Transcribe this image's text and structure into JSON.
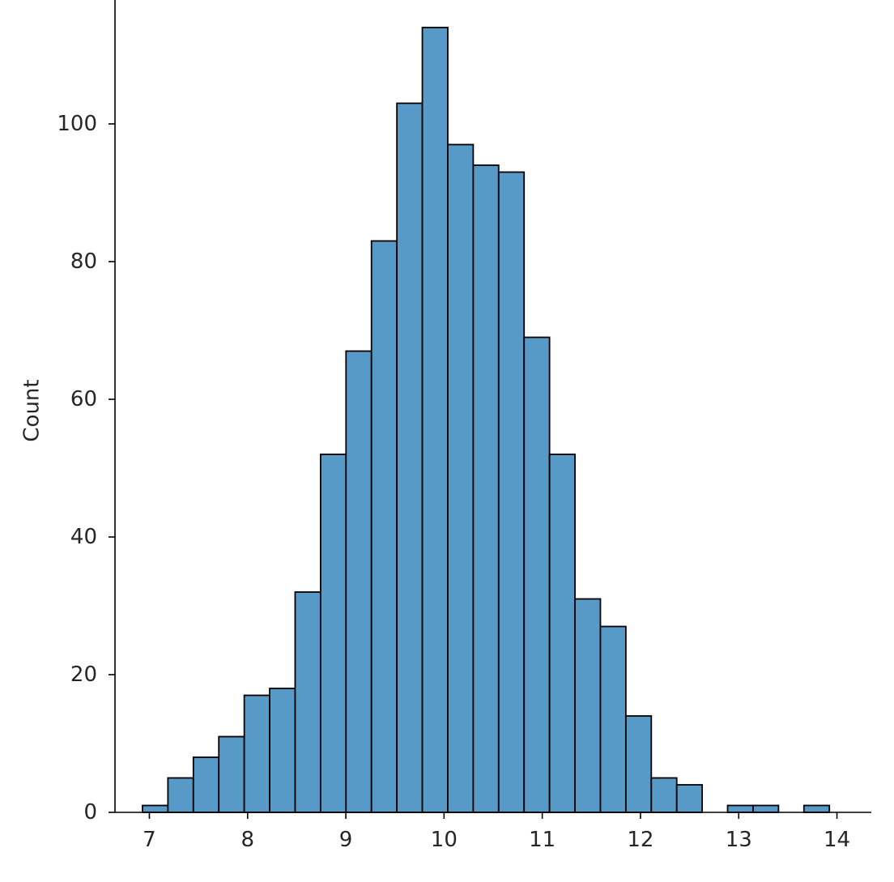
{
  "chart_data": {
    "type": "bar",
    "title": "",
    "xlabel": "",
    "ylabel": "Count",
    "xlim": [
      6.65,
      14.35
    ],
    "ylim": [
      0,
      118
    ],
    "xticks": [
      7,
      8,
      9,
      10,
      11,
      12,
      13,
      14
    ],
    "yticks": [
      0,
      20,
      40,
      60,
      80,
      100
    ],
    "bin_edges": [
      6.93,
      7.189,
      7.448,
      7.707,
      7.966,
      8.225,
      8.484,
      8.743,
      9.002,
      9.261,
      9.52,
      9.779,
      10.038,
      10.297,
      10.556,
      10.815,
      11.074,
      11.333,
      11.592,
      11.851,
      12.11,
      12.369,
      12.628,
      12.887,
      13.146,
      13.405,
      13.664,
      13.923
    ],
    "values": [
      1,
      5,
      8,
      11,
      17,
      18,
      32,
      52,
      67,
      83,
      103,
      114,
      97,
      94,
      93,
      69,
      52,
      31,
      27,
      14,
      5,
      4,
      0,
      1,
      1,
      0,
      1
    ],
    "bar_color": "#5799c7",
    "edge_color": "#000000",
    "grid": false
  }
}
